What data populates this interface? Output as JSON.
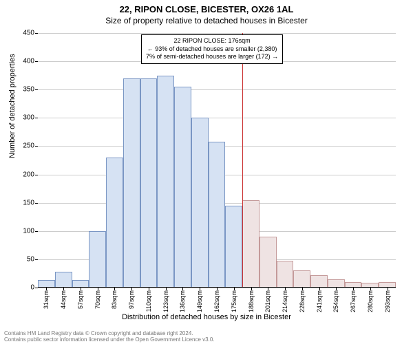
{
  "title_main": "22, RIPON CLOSE, BICESTER, OX26 1AL",
  "title_sub": "Size of property relative to detached houses in Bicester",
  "y_axis_label": "Number of detached properties",
  "x_axis_label": "Distribution of detached houses by size in Bicester",
  "chart": {
    "type": "histogram",
    "background_color": "#ffffff",
    "grid_color": "#cccccc",
    "ylim": [
      0,
      450
    ],
    "ytick_step": 50,
    "y_ticks": [
      0,
      50,
      100,
      150,
      200,
      250,
      300,
      350,
      400,
      450
    ],
    "x_categories": [
      "31sqm",
      "44sqm",
      "57sqm",
      "70sqm",
      "83sqm",
      "97sqm",
      "110sqm",
      "123sqm",
      "136sqm",
      "149sqm",
      "162sqm",
      "175sqm",
      "188sqm",
      "201sqm",
      "214sqm",
      "228sqm",
      "241sqm",
      "254sqm",
      "267sqm",
      "280sqm",
      "293sqm"
    ],
    "values": [
      13,
      28,
      13,
      100,
      230,
      370,
      370,
      375,
      355,
      300,
      258,
      145,
      155,
      90,
      48,
      30,
      22,
      15,
      10,
      8,
      10
    ],
    "bar_fill": "#d6e2f3",
    "bar_stroke": "#7a96c4",
    "bar_fill_right": "#efe3e3",
    "bar_stroke_right": "#c49a9a",
    "split_index": 12,
    "ref_line_color": "#cc3333",
    "label_fontsize": 11,
    "tick_fontsize": 10
  },
  "annotation": {
    "line1": "22 RIPON CLOSE: 176sqm",
    "line2": "← 93% of detached houses are smaller (2,380)",
    "line3": "7% of semi-detached houses are larger (172) →"
  },
  "footer_line1": "Contains HM Land Registry data © Crown copyright and database right 2024.",
  "footer_line2": "Contains public sector information licensed under the Open Government Licence v3.0."
}
